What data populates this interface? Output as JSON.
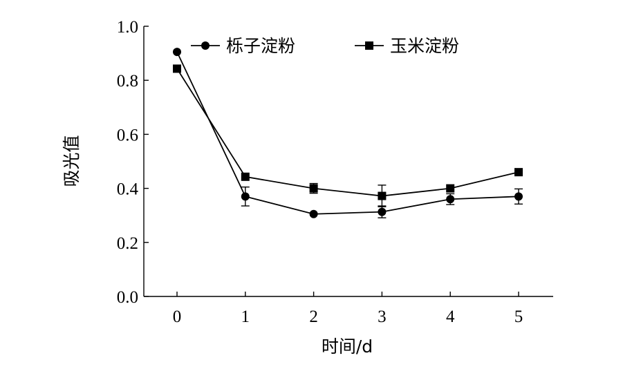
{
  "chart_data": {
    "type": "line",
    "xlabel": "时间/d",
    "ylabel": "吸光值",
    "x": [
      0,
      1,
      2,
      3,
      4,
      5
    ],
    "xlim": [
      -0.5,
      5.5
    ],
    "ylim": [
      0.0,
      1.0
    ],
    "x_ticks": [
      "0",
      "1",
      "2",
      "3",
      "4",
      "5"
    ],
    "y_ticks": [
      "0.0",
      "0.2",
      "0.4",
      "0.6",
      "0.8",
      "1.0"
    ],
    "legend_position": "top",
    "series": [
      {
        "name": "栎子淀粉",
        "marker": "circle",
        "values": [
          0.905,
          0.37,
          0.305,
          0.313,
          0.36,
          0.37
        ],
        "error": [
          0.0,
          0.035,
          0.0,
          0.022,
          0.02,
          0.028
        ]
      },
      {
        "name": "玉米淀粉",
        "marker": "square",
        "values": [
          0.843,
          0.443,
          0.4,
          0.372,
          0.4,
          0.46
        ],
        "error": [
          0.0,
          0.0,
          0.018,
          0.04,
          0.0,
          0.0
        ]
      }
    ]
  }
}
